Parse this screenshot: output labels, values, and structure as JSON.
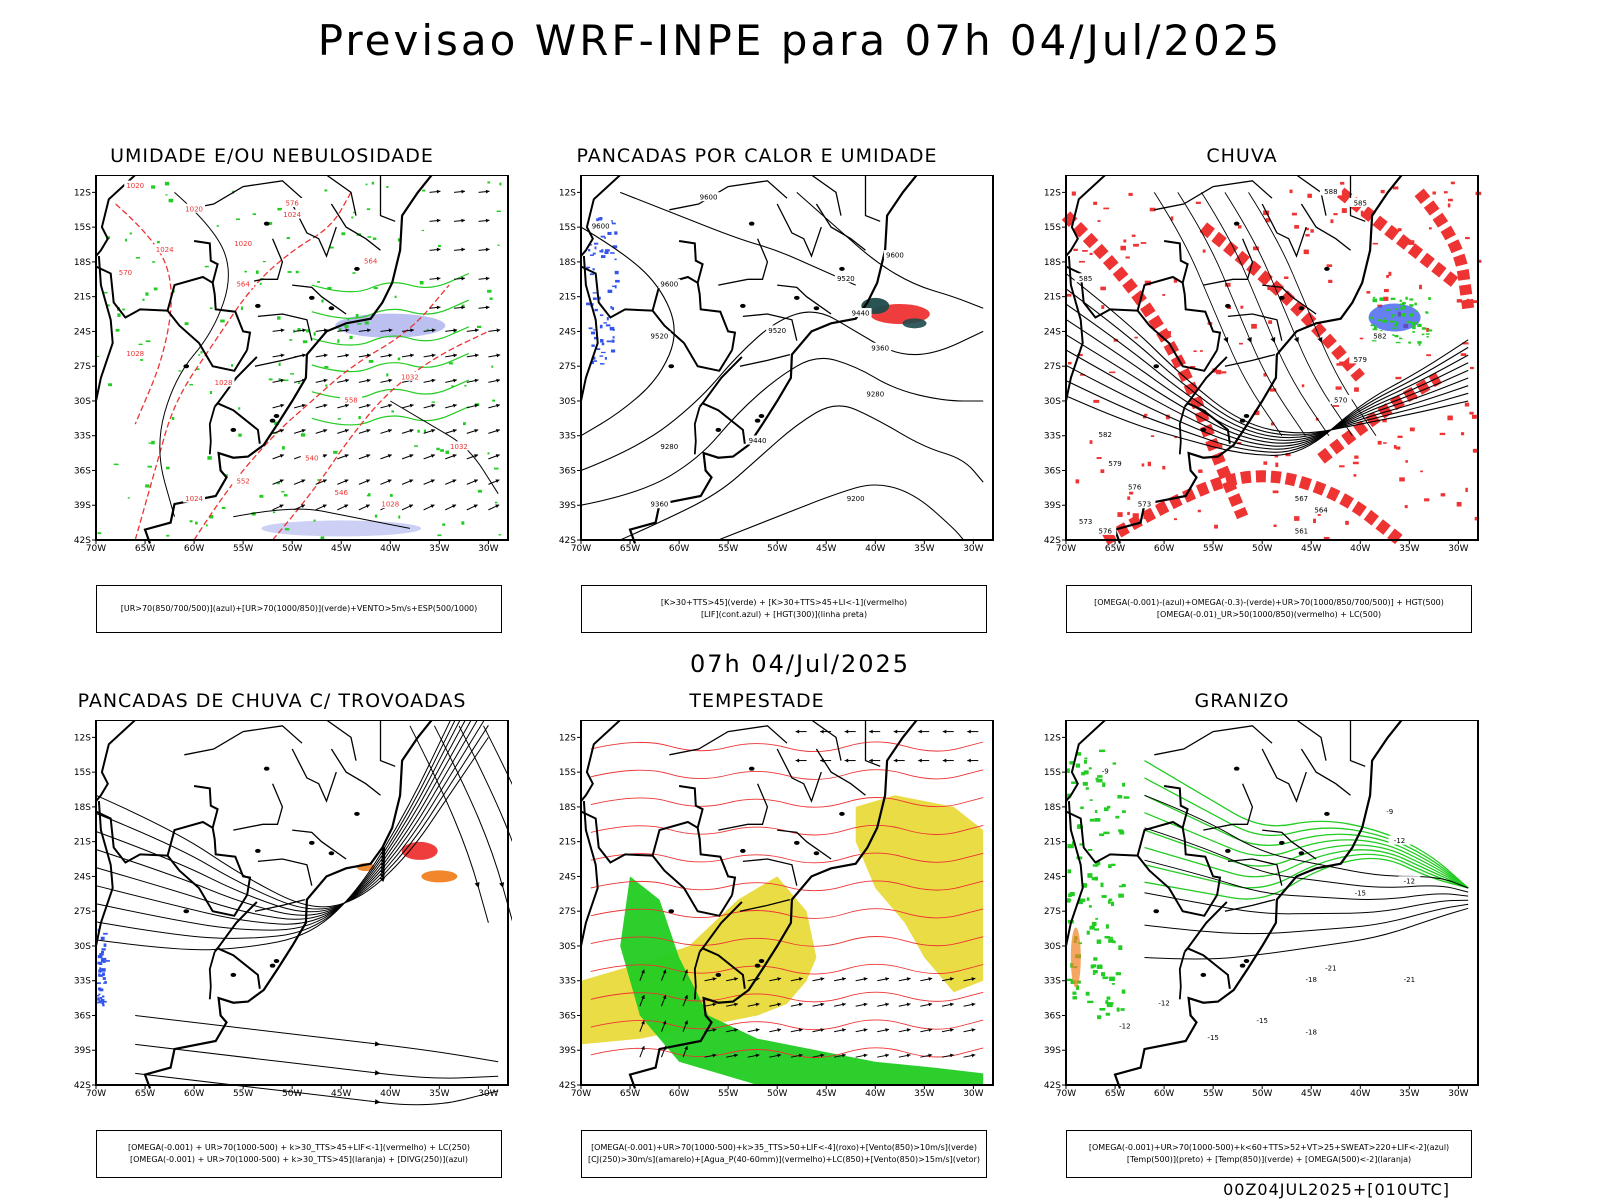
{
  "page": {
    "title": "Previsao WRF-INPE  para 07h 04/Jul/2025",
    "mid_date": "07h 04/Jul/2025",
    "run_label": "00Z04JUL2025+[010UTC]"
  },
  "axes": {
    "lat_labels": [
      "12S",
      "15S",
      "18S",
      "21S",
      "24S",
      "27S",
      "30S",
      "33S",
      "36S",
      "39S",
      "42S"
    ],
    "lon_labels": [
      "70W",
      "65W",
      "60W",
      "55W",
      "50W",
      "45W",
      "40W",
      "35W",
      "30W"
    ]
  },
  "colors": {
    "green": "#22cc22",
    "red": "#ee3333",
    "blue": "#3355ee",
    "lavender": "#aab0ee",
    "yellow": "#e8d830",
    "orange": "#f08020",
    "teal": "#1f4a4a",
    "black": "#000000"
  },
  "panels": [
    {
      "id": "umidade",
      "title": "UMIDADE E/OU NEBULOSIDADE",
      "legend": [
        "[UR>70(850/700/500)](azul)+[UR>70(1000/850)](verde)+VENTO>5m/s+ESP(500/1000)"
      ],
      "contour_labels": [
        "1020",
        "1020",
        "1020",
        "1024",
        "1024",
        "1028",
        "1028",
        "1032",
        "1032",
        "1024",
        "1028",
        "576",
        "564",
        "570",
        "552",
        "546",
        "540",
        "564",
        "558"
      ]
    },
    {
      "id": "pancadas-calor",
      "title": "PANCADAS POR CALOR E UMIDADE",
      "legend": [
        "[K>30+TTS>45](verde) + [K>30+TTS>45+LI<-1](vermelho)",
        "[LIF](cont.azul) + [HGT(300)](linha preta)"
      ],
      "contour_labels": [
        "9600",
        "9600",
        "9600",
        "9600",
        "9520",
        "9520",
        "9440",
        "9360",
        "9280",
        "9200",
        "9440",
        "9360",
        "9280",
        "9520"
      ]
    },
    {
      "id": "chuva",
      "title": "CHUVA",
      "legend": [
        "[OMEGA(-0.001)-(azul)+OMEGA(-0.3)-(verde)+UR>70(1000/850/700/500)] + HGT(500)",
        "[OMEGA(-0.01)_UR>50(1000/850)(vermelho) + LC(500)"
      ],
      "contour_labels": [
        "585",
        "582",
        "579",
        "576",
        "573",
        "570",
        "567",
        "564",
        "561",
        "588",
        "585",
        "582",
        "579",
        "576",
        "573"
      ]
    },
    {
      "id": "trovoadas",
      "title": "PANCADAS DE CHUVA C/ TROVOADAS",
      "legend": [
        "[OMEGA(-0.001) + UR>70(1000-500) + k>30_TTS>45+LIF<-1](vermelho) + LC(250)",
        "[OMEGA(-0.001) + UR>70(1000-500) + k>30_TTS>45](laranja) + [DIVG(250)](azul)"
      ],
      "contour_labels": []
    },
    {
      "id": "tempestade",
      "title": "TEMPESTADE",
      "legend": [
        "[OMEGA(-0.001)+UR>70(1000-500)+k>35_TTS>50+LIF<-4](roxo)+[Vento(850)>10m/s](verde)",
        "[CJ(250)>30m/s](amarelo)+[Agua_P(40-60mm)](vermelho)+LC(850)+[Vento(850)>15m/s](vetor)"
      ],
      "contour_labels": []
    },
    {
      "id": "granizo",
      "title": "GRANIZO",
      "legend": [
        "[OMEGA(-0.001)+UR>70(1000-500)+k<60+TTS>52+VT>25+SWEAT>220+LIF<-2](azul)",
        "[Temp(500)](preto) + [Temp(850)](verde) + [OMEGA(500)<-2](laranja)"
      ],
      "contour_labels": [
        "-9",
        "-12",
        "-12",
        "-15",
        "-18",
        "-21",
        "-21",
        "-12",
        "-15",
        "-18",
        "-12",
        "-9",
        "-15"
      ]
    }
  ]
}
